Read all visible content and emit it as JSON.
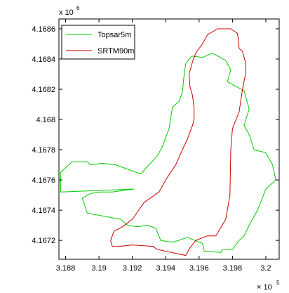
{
  "chart_data": {
    "type": "line",
    "xlim": [
      318760,
      320080
    ],
    "ylim": [
      4167075,
      4168665
    ],
    "x_ticks": [
      318800,
      319000,
      319200,
      319400,
      319600,
      319800,
      320000
    ],
    "x_tick_labels": [
      "3.188",
      "3.19",
      "3.192",
      "3.194",
      "3.196",
      "3.198",
      "3.2"
    ],
    "y_ticks": [
      4167200,
      4167400,
      4167600,
      4167800,
      4168000,
      4168200,
      4168400,
      4168600
    ],
    "y_tick_labels": [
      "4.1672",
      "4.1674",
      "4.1676",
      "4.1678",
      "4.168",
      "4.1682",
      "4.1684",
      "4.1686"
    ],
    "x_multiplier": {
      "base": "× 10",
      "exp": "5"
    },
    "y_multiplier": {
      "base": "x 10",
      "exp": "6"
    },
    "grid": false,
    "legend": {
      "location": "top-left"
    },
    "series": [
      {
        "name": "Topsar5m",
        "color": "#00cc00",
        "x": [
          319555,
          319620,
          319680,
          319760,
          319790,
          319770,
          319870,
          319900,
          319870,
          319900,
          319930,
          320000,
          320040,
          320060,
          320000,
          319950,
          319900,
          319870,
          319840,
          319800,
          319740,
          319730,
          319630,
          319620,
          319530,
          319450,
          319420,
          319370,
          319340,
          319290,
          319230,
          319170,
          319130,
          318930,
          318900,
          318950,
          319010,
          319080,
          319210,
          318770,
          318770,
          318840,
          318930,
          318950,
          319020,
          319100,
          319250,
          319300,
          319350,
          319380,
          319420,
          319440,
          319480,
          319500,
          319510,
          319520,
          319555
        ],
        "y": [
          4168420,
          4168410,
          4168440,
          4168390,
          4168330,
          4168250,
          4168190,
          4168070,
          4167960,
          4167900,
          4167800,
          4167780,
          4167700,
          4167600,
          4167540,
          4167400,
          4167300,
          4167230,
          4167200,
          4167140,
          4167140,
          4167120,
          4167130,
          4167180,
          4167220,
          4167190,
          4167190,
          4167200,
          4167280,
          4167300,
          4167290,
          4167300,
          4167340,
          4167380,
          4167480,
          4167510,
          4167520,
          4167520,
          4167540,
          4167520,
          4167650,
          4167720,
          4167720,
          4167700,
          4167710,
          4167700,
          4167640,
          4167700,
          4167760,
          4167820,
          4167940,
          4168080,
          4168120,
          4168180,
          4168290,
          4168370,
          4168420
        ]
      },
      {
        "name": "SRTM90m",
        "color": "#cc0000",
        "x": [
          319710,
          319790,
          319830,
          319835,
          319840,
          319860,
          319880,
          319880,
          319860,
          319840,
          319800,
          319790,
          319785,
          319760,
          319700,
          319650,
          319580,
          319545,
          319520,
          319350,
          319330,
          319330,
          319200,
          319120,
          319080,
          319070,
          319090,
          319140,
          319200,
          319270,
          319360,
          319400,
          319460,
          319500,
          319530,
          319560,
          319570,
          319570,
          319560,
          319545,
          319540,
          319560,
          319580,
          319620,
          319650,
          319710
        ],
        "y": [
          4168600,
          4168600,
          4168570,
          4168530,
          4168470,
          4168450,
          4168370,
          4168310,
          4168200,
          4168050,
          4167940,
          4167800,
          4167500,
          4167340,
          4167230,
          4167230,
          4167200,
          4167150,
          4167100,
          4167140,
          4167155,
          4167160,
          4167170,
          4167160,
          4167160,
          4167200,
          4167260,
          4167290,
          4167340,
          4167450,
          4167520,
          4167600,
          4167700,
          4167800,
          4167870,
          4167960,
          4168000,
          4168080,
          4168160,
          4168220,
          4168300,
          4168380,
          4168440,
          4168500,
          4168560,
          4168600
        ]
      }
    ]
  }
}
